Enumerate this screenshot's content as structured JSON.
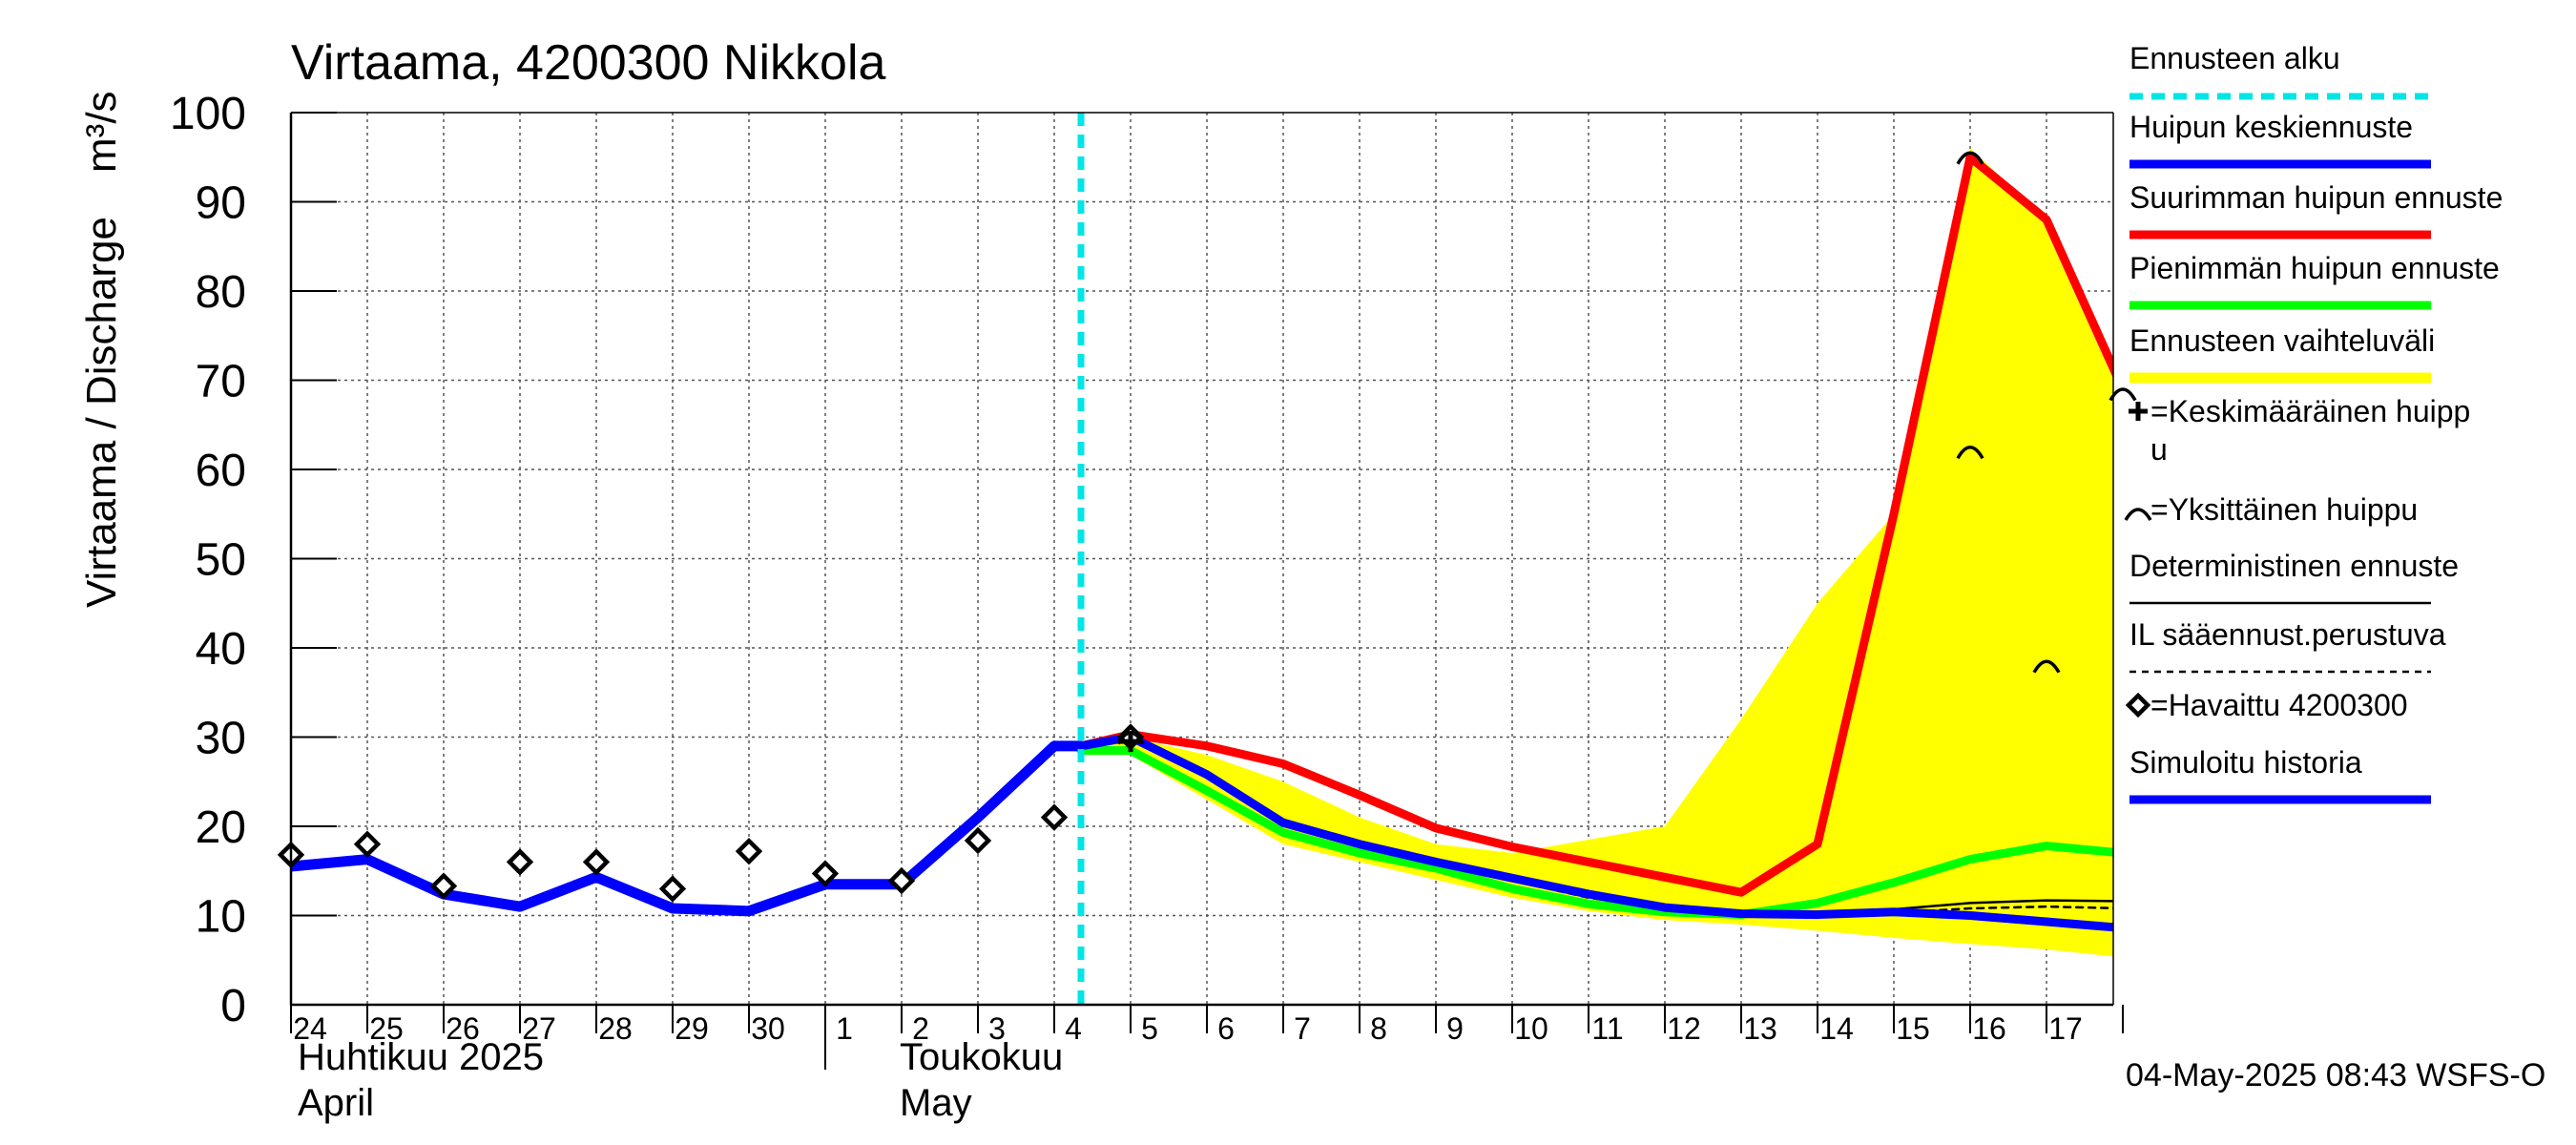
{
  "chart_data": {
    "type": "line",
    "title": "Virtaama, 4200300 Nikkola",
    "ylabel": "Virtaama / Discharge",
    "yunit": "m³/s",
    "ylim": [
      0,
      100
    ],
    "yticks": [
      0,
      10,
      20,
      30,
      40,
      50,
      60,
      70,
      80,
      90,
      100
    ],
    "grid": true,
    "legend_position": "right",
    "x_day_labels": [
      "24",
      "25",
      "26",
      "27",
      "28",
      "29",
      "30",
      "1",
      "2",
      "3",
      "4",
      "5",
      "6",
      "7",
      "8",
      "9",
      "10",
      "11",
      "12",
      "13",
      "14",
      "15",
      "16",
      "17"
    ],
    "months": [
      {
        "fi": "Huhtikuu  2025",
        "en": "April"
      },
      {
        "fi": "Toukokuu",
        "en": "May"
      }
    ],
    "forecast_start": "2025-05-04",
    "forecast_start_x": 10.35,
    "x_end": 24.0,
    "series": [
      {
        "key": "band_upper",
        "color": "#ffff00",
        "x": [
          10.35,
          11,
          12,
          13,
          14,
          15,
          16,
          17,
          18,
          19,
          20,
          21,
          22,
          23,
          24
        ],
        "y": [
          29,
          30,
          28,
          25,
          21,
          18,
          17,
          18.5,
          20,
          32,
          45,
          55,
          96,
          88,
          70
        ]
      },
      {
        "key": "band_lower",
        "color": "#ffff00",
        "x": [
          10.35,
          11,
          12,
          13,
          14,
          15,
          16,
          17,
          18,
          19,
          20,
          21,
          22,
          23,
          24
        ],
        "y": [
          28,
          28,
          23,
          18,
          16,
          14,
          12,
          10.5,
          9.5,
          9,
          8.3,
          7.5,
          6.8,
          6.2,
          5.3
        ]
      },
      {
        "key": "max_peak",
        "color": "#ff0000",
        "x": [
          10.35,
          11,
          12,
          13,
          14,
          15,
          16,
          17,
          18,
          19,
          20,
          21,
          22,
          23,
          24
        ],
        "y": [
          29,
          30.3,
          29,
          27,
          23.5,
          19.8,
          17.7,
          16,
          14.3,
          12.6,
          18,
          55,
          95,
          88,
          69
        ]
      },
      {
        "key": "min_peak",
        "color": "#00ff00",
        "x": [
          10.35,
          11,
          12,
          13,
          14,
          15,
          16,
          17,
          18,
          19,
          20,
          21,
          22,
          23,
          24
        ],
        "y": [
          28.5,
          28.5,
          24,
          19.3,
          17,
          15.3,
          13,
          11.3,
          10.4,
          10.1,
          11.4,
          13.7,
          16.3,
          17.8,
          17
        ]
      },
      {
        "key": "il_forecast",
        "color": "#000000",
        "dashed": true,
        "x": [
          12,
          13,
          14,
          15,
          16,
          17,
          18,
          19,
          20,
          21,
          22,
          23,
          24
        ],
        "y": [
          25.8,
          20.6,
          18.3,
          16.3,
          13.9,
          12,
          10.8,
          10.2,
          10,
          10.3,
          10.8,
          11,
          10.8
        ]
      },
      {
        "key": "deterministic",
        "color": "#000000",
        "x": [
          12,
          13,
          14,
          15,
          16,
          17,
          18,
          19,
          20,
          21,
          22,
          23,
          24
        ],
        "y": [
          25.8,
          20.6,
          18.2,
          16.2,
          14,
          12.3,
          10.9,
          10.3,
          10.4,
          10.7,
          11.4,
          11.7,
          11.6
        ]
      },
      {
        "key": "mean_peak",
        "color": "#0000ff",
        "x": [
          10.35,
          11,
          12,
          13,
          14,
          15,
          16,
          17,
          18,
          19,
          20,
          21,
          22,
          23,
          24
        ],
        "y": [
          29,
          30,
          25.8,
          20.4,
          18,
          16,
          14.2,
          12.4,
          10.9,
          10.2,
          10.1,
          10.4,
          10,
          9.3,
          8.6
        ]
      },
      {
        "key": "simulated_history",
        "color": "#0000ff",
        "x": [
          0,
          1,
          2,
          3,
          4,
          5,
          6,
          7,
          8,
          9,
          10,
          10.35
        ],
        "y": [
          15.5,
          16.3,
          12.4,
          11,
          14.3,
          10.8,
          10.5,
          13.5,
          13.5,
          21,
          29,
          29
        ]
      },
      {
        "key": "observed",
        "color": "#000000",
        "marker": "diamond",
        "x": [
          0,
          1,
          2,
          3,
          4,
          5,
          6,
          7,
          8,
          9,
          10,
          11
        ],
        "y": [
          16.8,
          18,
          13.3,
          16,
          16,
          13,
          17.2,
          14.7,
          13.9,
          18.4,
          21,
          30
        ]
      }
    ],
    "single_peaks": [
      {
        "x": 11,
        "y": 30
      },
      {
        "x": 22,
        "y": 95
      },
      {
        "x": 22,
        "y": 62
      },
      {
        "x": 23,
        "y": 38
      },
      {
        "x": 24,
        "y": 68.5
      }
    ],
    "mean_peak_marker": {
      "x": 11,
      "y": 29.5
    },
    "legend": [
      {
        "label": "Ennusteen alku",
        "style": "dashed",
        "color": "#00e5e5"
      },
      {
        "label": "Huipun keskiennuste",
        "style": "line",
        "color": "#0000ff"
      },
      {
        "label": "Suurimman huipun ennuste",
        "style": "line",
        "color": "#ff0000"
      },
      {
        "label": "Pienimmän huipun ennuste",
        "style": "line",
        "color": "#00ff00"
      },
      {
        "label": "Ennusteen vaihteluväli",
        "style": "band",
        "color": "#ffff00"
      },
      {
        "label": "=Keskimääräinen huipp",
        "label2": "u",
        "style": "plus-marker",
        "color": "#000000"
      },
      {
        "label": "=Yksittäinen huippu",
        "style": "arc-marker",
        "color": "#000000"
      },
      {
        "label": "Deterministinen ennuste",
        "style": "thin",
        "color": "#000000"
      },
      {
        "label": "IL sääennust.perustuva",
        "style": "thin-dashed",
        "color": "#000000"
      },
      {
        "label": "=Havaittu 4200300",
        "style": "diamond-marker",
        "color": "#000000"
      },
      {
        "label": "Simuloitu historia",
        "style": "line",
        "color": "#0000ff"
      }
    ]
  },
  "footer": "04-May-2025 08:43 WSFS-O"
}
